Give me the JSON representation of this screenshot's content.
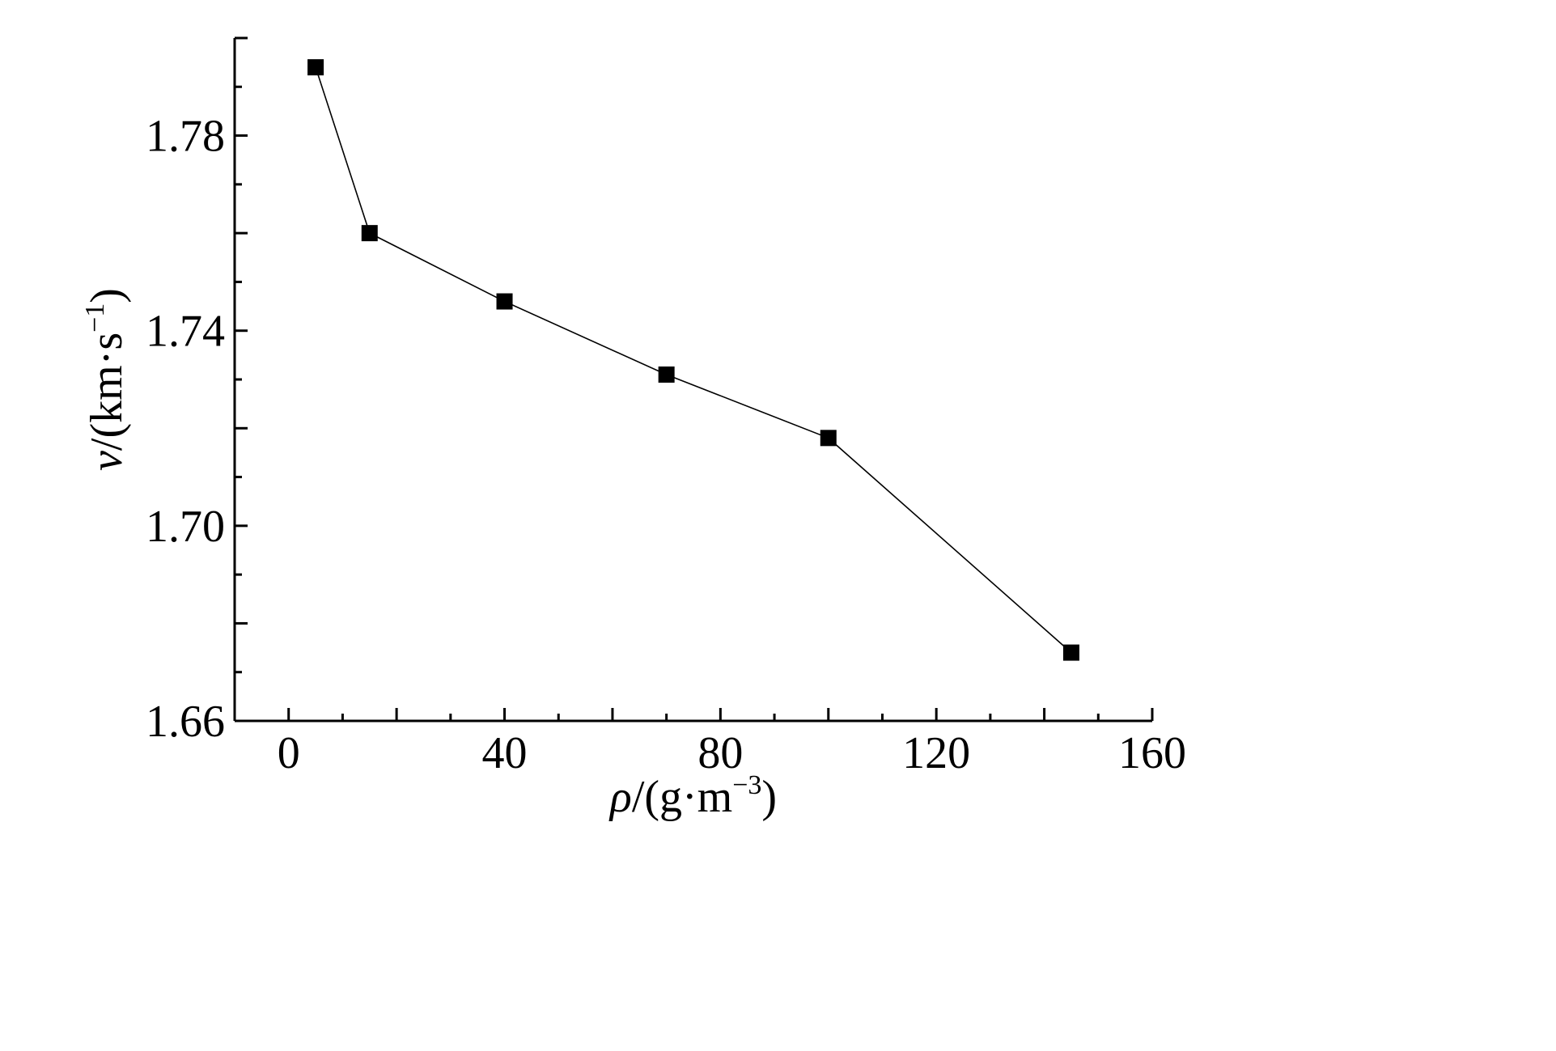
{
  "chart_data": {
    "type": "line",
    "title": "",
    "xlabel": {
      "symbol": "ρ",
      "unit": "/(g·m",
      "exp": "−3",
      "close": ")"
    },
    "ylabel": {
      "symbol": "v",
      "unit": "/(km·s",
      "exp": "−1",
      "close": ")"
    },
    "xlim": [
      -10,
      160
    ],
    "ylim": [
      1.66,
      1.8
    ],
    "x_ticks": [
      0,
      40,
      80,
      120,
      160
    ],
    "x_tick_labels": [
      "0",
      "40",
      "80",
      "120",
      "160"
    ],
    "y_ticks": [
      1.66,
      1.7,
      1.74,
      1.78
    ],
    "y_tick_labels": [
      "1.66",
      "1.70",
      "1.74",
      "1.78"
    ],
    "grid": false,
    "series": [
      {
        "marker": "square",
        "color": "#000000",
        "x": [
          5,
          15,
          40,
          70,
          100,
          145
        ],
        "y": [
          1.794,
          1.76,
          1.746,
          1.731,
          1.718,
          1.674
        ]
      }
    ]
  }
}
